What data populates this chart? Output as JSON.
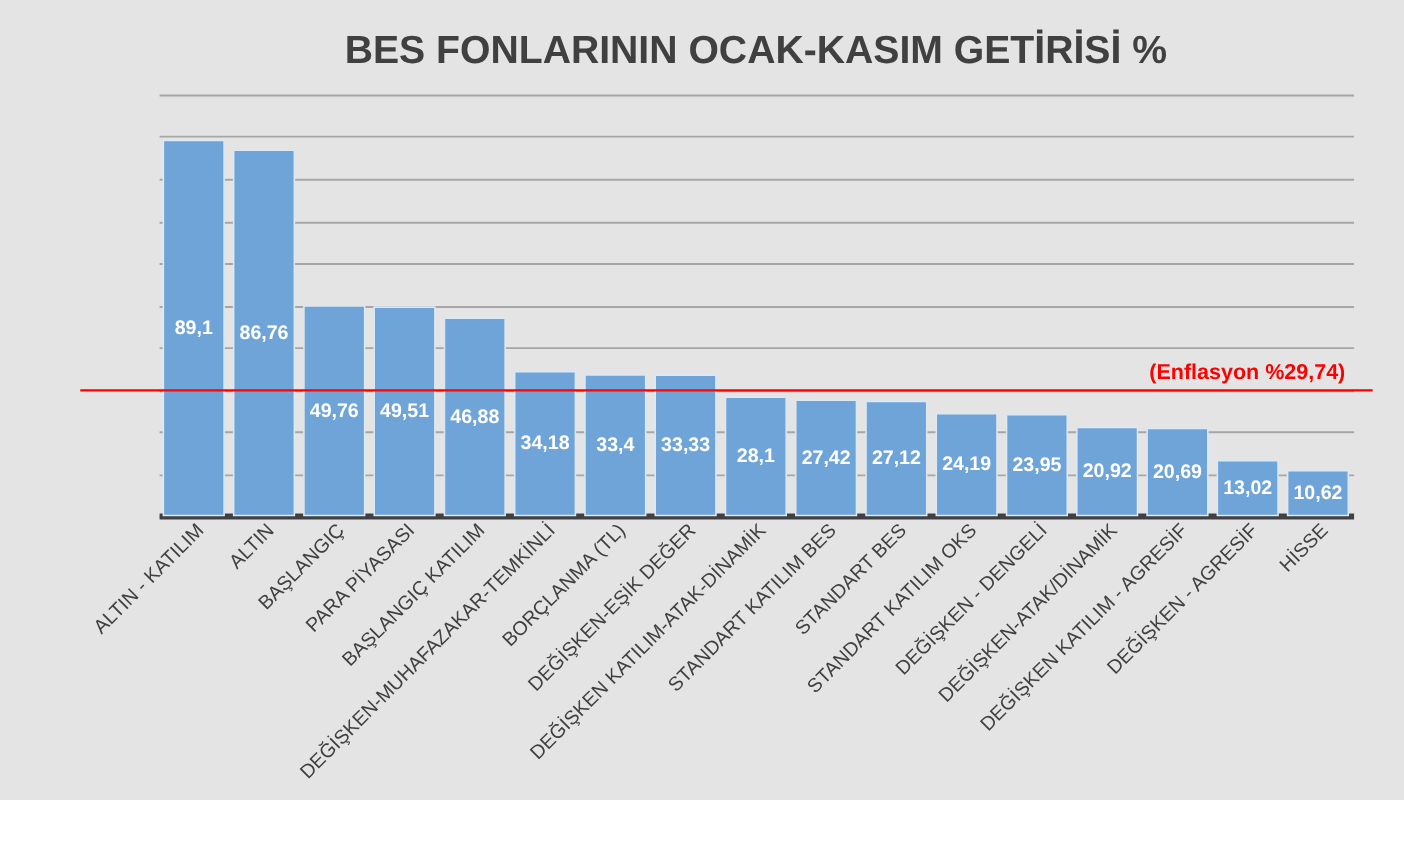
{
  "chart_data": {
    "type": "bar",
    "title": "BES FONLARININ OCAK-KASIM GETİRİSİ %",
    "categories": [
      "ALTIN - KATILIM",
      "ALTIN",
      "BAŞLANGIÇ",
      "PARA PİYASASI",
      "BAŞLANGIÇ KATILIM",
      "DEĞİŞKEN-MUHAFAZAKAR-TEMKİNLİ",
      "BORÇLANMA (TL)",
      "DEĞİŞKEN-EŞİK DEĞER",
      "DEĞİŞKEN KATILIM-ATAK-DİNAMİK",
      "STANDART KATILIM BES",
      "STANDART BES",
      "STANDART KATILIM OKS",
      "DEĞİŞKEN - DENGELİ",
      "DEĞİŞKEN-ATAK/DİNAMİK",
      "DEĞİŞKEN KATILIM - AGRESİF",
      "DEĞİŞKEN - AGRESİF",
      "HİSSE"
    ],
    "values": [
      89.1,
      86.76,
      49.76,
      49.51,
      46.88,
      34.18,
      33.4,
      33.33,
      28.1,
      27.42,
      27.12,
      24.19,
      23.95,
      20.92,
      20.69,
      13.02,
      10.62
    ],
    "value_labels": [
      "89,1",
      "86,76",
      "49,76",
      "49,51",
      "46,88",
      "34,18",
      "33,4",
      "33,33",
      "28,1",
      "27,42",
      "27,12",
      "24,19",
      "23,95",
      "20,92",
      "20,69",
      "13,02",
      "10,62"
    ],
    "color": "#6fa4d8",
    "ylim": [
      0,
      100
    ],
    "tick_labels": "x",
    "grid": "y",
    "ref_lines": [
      {
        "axis": "y",
        "value": 29.74,
        "label": "(Enflasyon %29,74)",
        "color": "#ff0000"
      }
    ]
  }
}
